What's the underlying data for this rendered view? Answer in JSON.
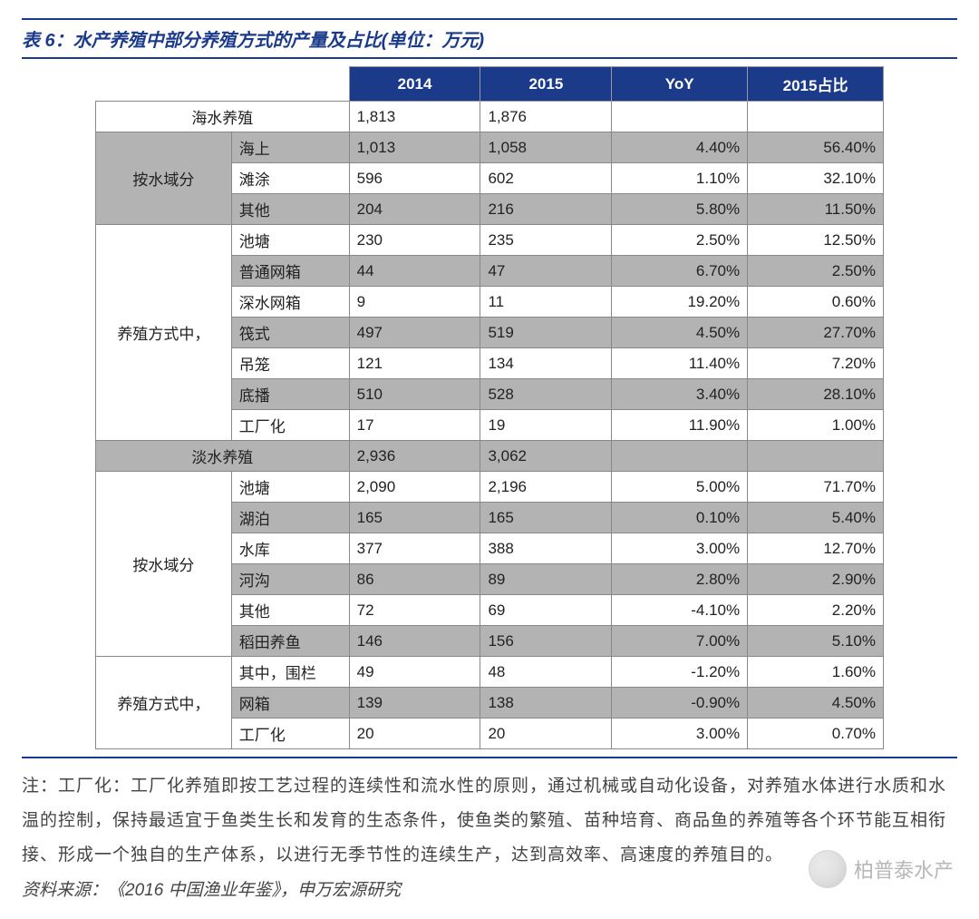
{
  "title": "表 6：水产养殖中部分养殖方式的产量及占比(单位：万元)",
  "columns": {
    "y14": "2014",
    "y15": "2015",
    "yoy": "YoY",
    "pct": "2015占比"
  },
  "note": "注：工厂化：工厂化养殖即按工艺过程的连续性和流水性的原则，通过机械或自动化设备，对养殖水体进行水质和水温的控制，保持最适宜于鱼类生长和发育的生态条件，使鱼类的繁殖、苗种培育、商品鱼的养殖等各个环节能互相衔接、形成一个独自的生产体系，以进行无季节性的连续生产，达到高效率、高速度的养殖目的。",
  "source": "资料来源：《2016 中国渔业年鉴》，申万宏源研究",
  "watermark": "柏普泰水产",
  "labels": {
    "seawater": "海水养殖",
    "freshwater": "淡水养殖",
    "byWater": "按水域分",
    "byMethod": "养殖方式中，"
  },
  "sea_water1": [
    {
      "sub": "海上",
      "y14": "1,013",
      "y15": "1,058",
      "yoy": "4.40%",
      "pct": "56.40%"
    },
    {
      "sub": "滩涂",
      "y14": "596",
      "y15": "602",
      "yoy": "1.10%",
      "pct": "32.10%"
    },
    {
      "sub": "其他",
      "y14": "204",
      "y15": "216",
      "yoy": "5.80%",
      "pct": "11.50%"
    }
  ],
  "sea_method": [
    {
      "sub": "池塘",
      "y14": "230",
      "y15": "235",
      "yoy": "2.50%",
      "pct": "12.50%"
    },
    {
      "sub": "普通网箱",
      "y14": "44",
      "y15": "47",
      "yoy": "6.70%",
      "pct": "2.50%"
    },
    {
      "sub": "深水网箱",
      "y14": "9",
      "y15": "11",
      "yoy": "19.20%",
      "pct": "0.60%"
    },
    {
      "sub": "筏式",
      "y14": "497",
      "y15": "519",
      "yoy": "4.50%",
      "pct": "27.70%"
    },
    {
      "sub": "吊笼",
      "y14": "121",
      "y15": "134",
      "yoy": "11.40%",
      "pct": "7.20%"
    },
    {
      "sub": "底播",
      "y14": "510",
      "y15": "528",
      "yoy": "3.40%",
      "pct": "28.10%"
    },
    {
      "sub": "工厂化",
      "y14": "17",
      "y15": "19",
      "yoy": "11.90%",
      "pct": "1.00%"
    }
  ],
  "fresh_water1": [
    {
      "sub": "池塘",
      "y14": "2,090",
      "y15": "2,196",
      "yoy": "5.00%",
      "pct": "71.70%"
    },
    {
      "sub": "湖泊",
      "y14": "165",
      "y15": "165",
      "yoy": "0.10%",
      "pct": "5.40%"
    },
    {
      "sub": "水库",
      "y14": "377",
      "y15": "388",
      "yoy": "3.00%",
      "pct": "12.70%"
    },
    {
      "sub": "河沟",
      "y14": "86",
      "y15": "89",
      "yoy": "2.80%",
      "pct": "2.90%"
    },
    {
      "sub": "其他",
      "y14": "72",
      "y15": "69",
      "yoy": "-4.10%",
      "pct": "2.20%"
    },
    {
      "sub": "稻田养鱼",
      "y14": "146",
      "y15": "156",
      "yoy": "7.00%",
      "pct": "5.10%"
    }
  ],
  "fresh_method": [
    {
      "sub": "其中，围栏",
      "y14": "49",
      "y15": "48",
      "yoy": "-1.20%",
      "pct": "1.60%"
    },
    {
      "sub": "网箱",
      "y14": "139",
      "y15": "138",
      "yoy": "-0.90%",
      "pct": "4.50%"
    },
    {
      "sub": "工厂化",
      "y14": "20",
      "y15": "20",
      "yoy": "3.00%",
      "pct": "0.70%"
    }
  ],
  "sea_total": {
    "y14": "1,813",
    "y15": "1,876"
  },
  "fresh_total": {
    "y14": "2,936",
    "y15": "3,062"
  }
}
